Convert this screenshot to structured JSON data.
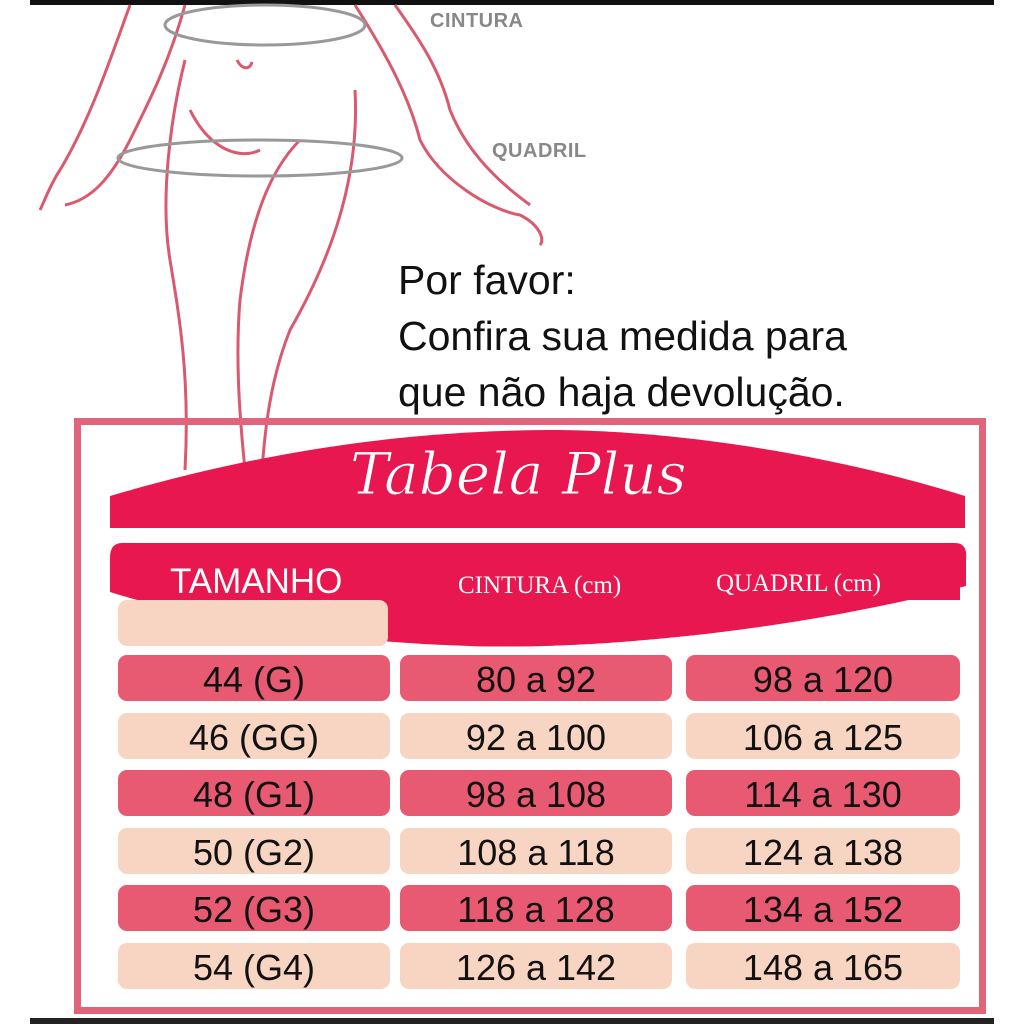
{
  "labels": {
    "waist": "CINTURA",
    "hip": "QUADRIL"
  },
  "note": {
    "line1": "Por favor:",
    "line2": "Confira sua medida para",
    "line3": "que não haja devolução."
  },
  "table": {
    "title": "Tabela Plus",
    "headers": [
      "TAMANHO",
      "CINTURA (cm)",
      "QUADRIL (cm)"
    ],
    "rows": [
      [
        "44 (G)",
        "80 a 92",
        "98 a 120"
      ],
      [
        "46 (GG)",
        "92 a 100",
        "106 a 125"
      ],
      [
        "48 (G1)",
        "98 a 108",
        "114 a 130"
      ],
      [
        "50 (G2)",
        "108 a 118",
        "124 a 138"
      ],
      [
        "52 (G3)",
        "118 a 128",
        "134 a 152"
      ],
      [
        "54 (G4)",
        "126 a 142",
        "148 a 165"
      ]
    ]
  },
  "colors": {
    "crimson": "#e8174f",
    "row_dark": "#e85a72",
    "row_light": "#f8d5c2",
    "frame": "#e0647a",
    "outline": "#d95a6e"
  }
}
